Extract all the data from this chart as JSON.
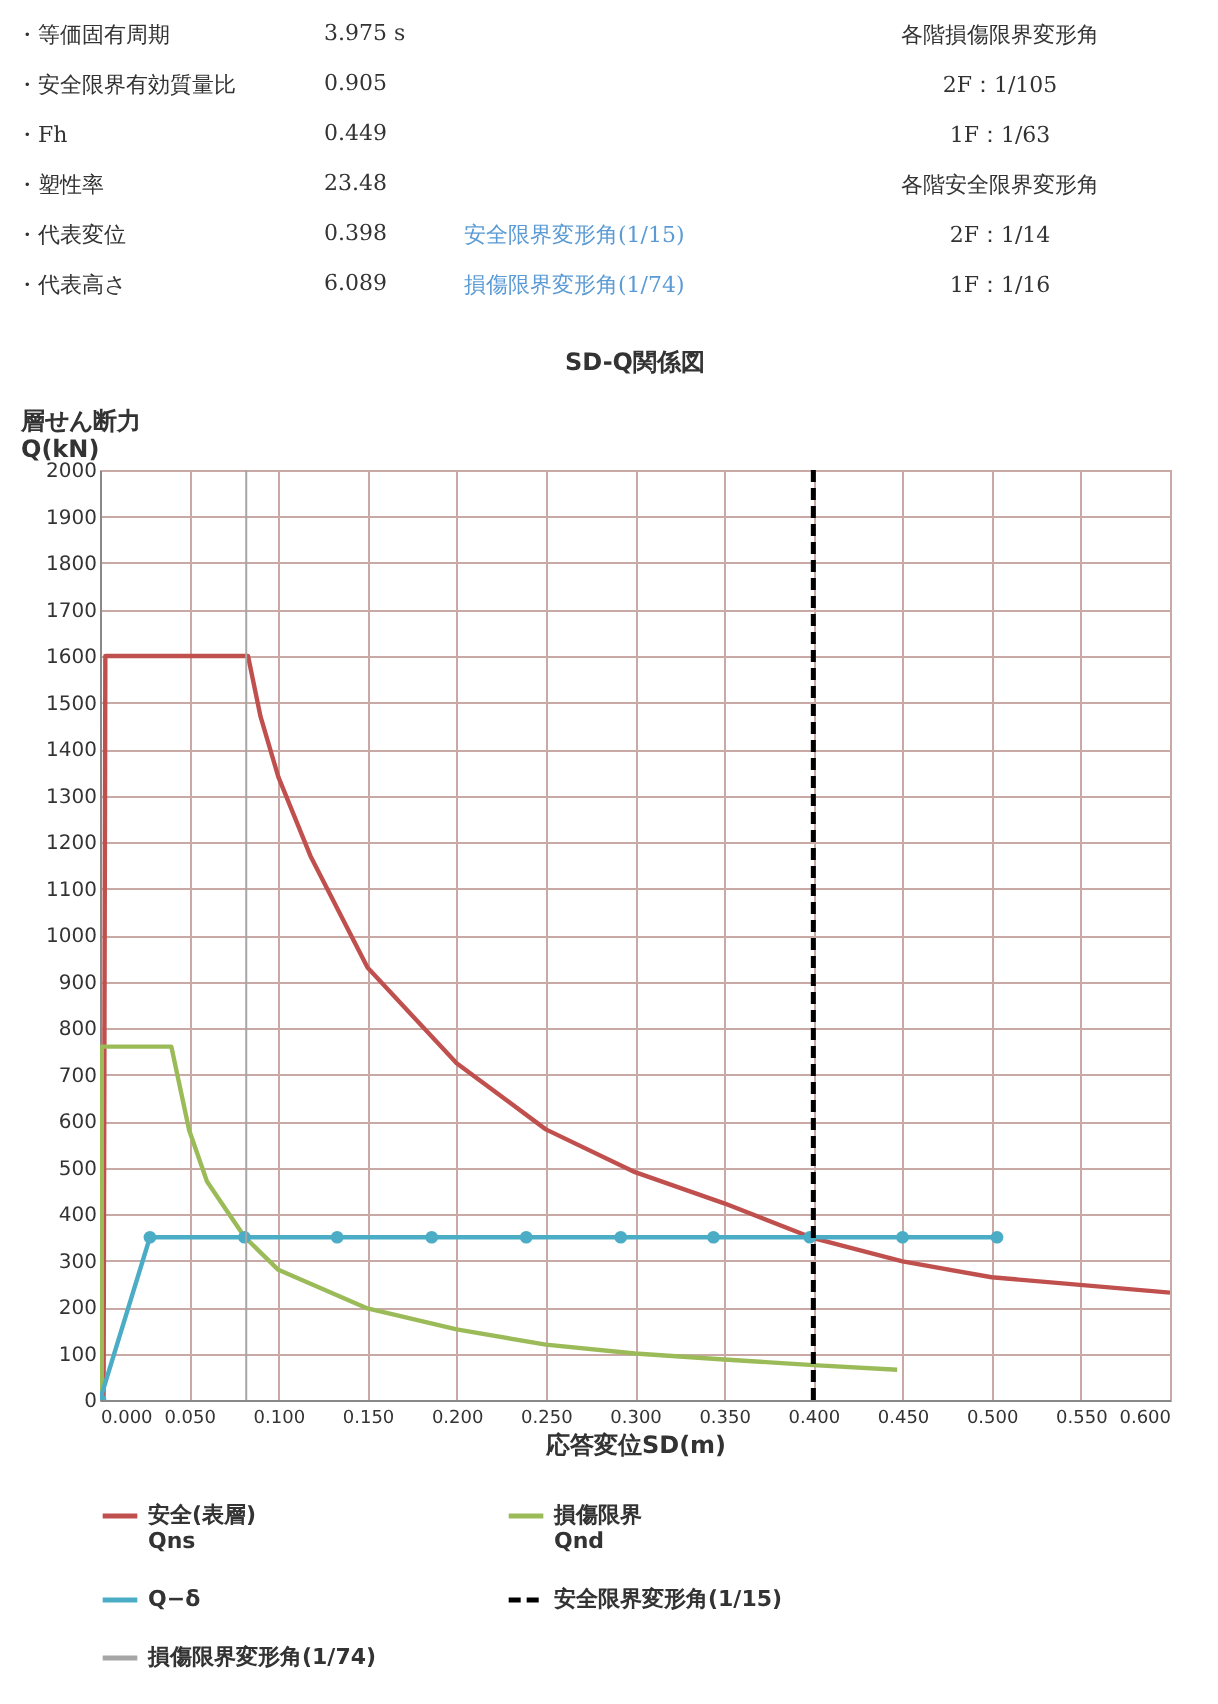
{
  "chart_data": {
    "type": "line",
    "title": "SD-Q関係図",
    "xlabel": "応答変位SD(m)",
    "ylabel": "層せん断力\nQ(kN)",
    "annotations": [
      "・等価固有周期",
      "3.975 s",
      "各階損傷限界変形角",
      "・安全限界有効質量比",
      "0.905",
      "2F：1/105",
      "・Fh",
      "0.449",
      "1F：1/63",
      "・塑性率",
      "23.48",
      "各階安全限界変形角",
      "・代表変位",
      "0.398",
      "安全限界変形角(1/15)",
      "2F：1/14",
      "・代表高さ",
      "6.089",
      "損傷限界変形角(1/74)",
      "1F：1/16"
    ],
    "xlim": [
      0,
      0.6
    ],
    "xticks": [
      {
        "value": 0,
        "label": "0.000"
      },
      {
        "value": 0.05,
        "label": "0.050"
      },
      {
        "value": 0.1,
        "label": "0.100"
      },
      {
        "value": 0.15,
        "label": "0.150"
      },
      {
        "value": 0.2,
        "label": "0.200"
      },
      {
        "value": 0.25,
        "label": "0.250"
      },
      {
        "value": 0.3,
        "label": "0.300"
      },
      {
        "value": 0.35,
        "label": "0.350"
      },
      {
        "value": 0.4,
        "label": "0.400"
      },
      {
        "value": 0.45,
        "label": "0.450"
      },
      {
        "value": 0.5,
        "label": "0.500"
      },
      {
        "value": 0.55,
        "label": "0.550"
      },
      {
        "value": 0.6,
        "label": "0.600"
      }
    ],
    "ylim": [
      0,
      2000
    ],
    "yticks": [
      0,
      100,
      200,
      300,
      400,
      500,
      600,
      700,
      800,
      900,
      1000,
      1100,
      1200,
      1300,
      1400,
      1500,
      1600,
      1700,
      1800,
      1900,
      2000
    ],
    "grid": true,
    "legend": "bottom",
    "series": [
      {
        "name": "安全(表層)\nQns",
        "color": "#c0504d",
        "line_style": "solid",
        "marker": "none",
        "x": [
          0.002,
          0.003,
          0.083,
          0.09,
          0.1,
          0.118,
          0.15,
          0.2,
          0.25,
          0.3,
          0.35,
          0.4,
          0.45,
          0.5,
          0.6
        ],
        "values": [
          0,
          1600,
          1600,
          1470,
          1340,
          1170,
          930,
          724,
          582,
          490,
          423,
          348,
          298,
          264,
          231
        ]
      },
      {
        "name": "損傷限界\nQnd",
        "color": "#9bbb59",
        "line_style": "solid",
        "marker": "none",
        "x": [
          0.001,
          0.001,
          0.04,
          0.05,
          0.06,
          0.081,
          0.1,
          0.15,
          0.2,
          0.25,
          0.3,
          0.35,
          0.4,
          0.447
        ],
        "values": [
          0,
          760,
          760,
          580,
          470,
          351,
          280,
          197,
          152,
          119,
          100,
          87,
          75,
          65
        ]
      },
      {
        "name": "Q−δ",
        "color": "#4bacc6",
        "line_style": "solid",
        "marker": "circle",
        "x": [
          0,
          0.028,
          0.081,
          0.133,
          0.186,
          0.239,
          0.292,
          0.344,
          0.398,
          0.45,
          0.503
        ],
        "values": [
          0,
          350,
          350,
          350,
          350,
          350,
          350,
          350,
          350,
          350,
          350
        ]
      },
      {
        "name": "安全限界変形角(1/15)",
        "color": "#000000",
        "line_style": "dashed",
        "marker": "none",
        "x": [
          0.4,
          0.4
        ],
        "values": [
          0,
          2000
        ]
      },
      {
        "name": "損傷限界変形角(1/74)",
        "color": "#a6a6a6",
        "line_style": "solid",
        "marker": "none",
        "x": [
          0.082,
          0.082
        ],
        "values": [
          0,
          2000
        ]
      }
    ]
  }
}
